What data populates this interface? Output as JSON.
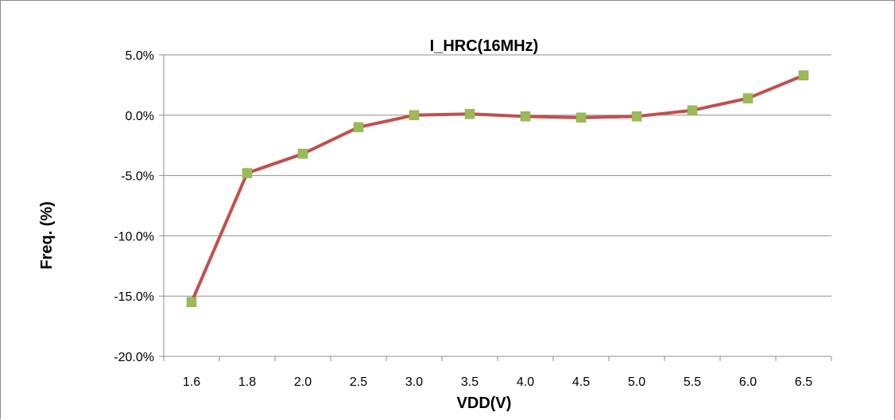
{
  "chart_data": {
    "type": "line",
    "title": "I_HRC(16MHz)",
    "xlabel": "VDD(V)",
    "ylabel": "Freq. (%)",
    "categories": [
      "1.6",
      "1.8",
      "2.0",
      "2.5",
      "3.0",
      "3.5",
      "4.0",
      "4.5",
      "5.0",
      "5.5",
      "6.0",
      "6.5"
    ],
    "series": [
      {
        "values": [
          -15.5,
          -4.8,
          -3.2,
          -1.0,
          0.0,
          0.1,
          -0.1,
          -0.2,
          -0.1,
          0.4,
          1.4,
          3.3
        ]
      }
    ],
    "yticks": [
      "5.0%",
      "0.0%",
      "-5.0%",
      "-10.0%",
      "-15.0%",
      "-20.0%"
    ],
    "ytick_values": [
      5,
      0,
      -5,
      -10,
      -15,
      -20
    ],
    "ylim": [
      -20,
      5
    ],
    "grid": true,
    "line_color": "#c0504d",
    "marker_color": "#9bbb59"
  }
}
